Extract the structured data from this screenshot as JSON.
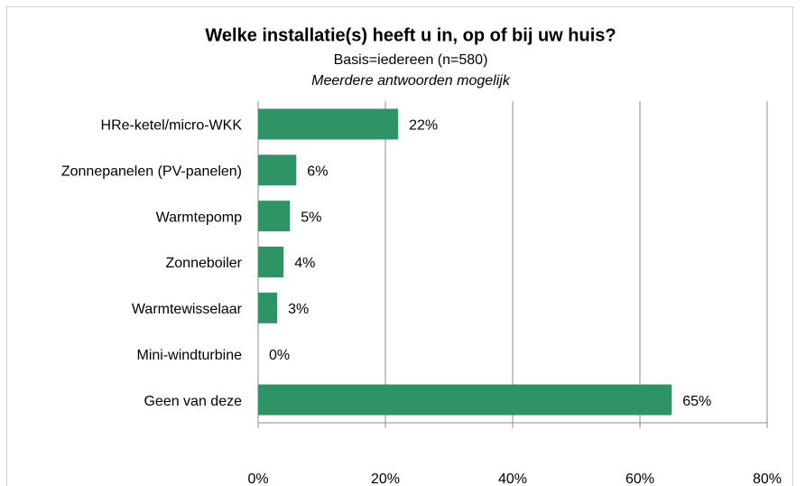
{
  "chart_data": {
    "type": "bar",
    "orientation": "horizontal",
    "title": "Welke installatie(s) heeft u in, op of bij uw huis?",
    "subtitle": "Basis=iedereen (n=580)",
    "note": "Meerdere antwoorden mogelijk",
    "categories": [
      "HRe-ketel/micro-WKK",
      "Zonnepanelen (PV-panelen)",
      "Warmtepomp",
      "Zonneboiler",
      "Warmtewisselaar",
      "Mini-windturbine",
      "Geen van deze"
    ],
    "values": [
      22,
      6,
      5,
      4,
      3,
      0,
      65
    ],
    "value_labels": [
      "22%",
      "6%",
      "5%",
      "4%",
      "3%",
      "0%",
      "65%"
    ],
    "color": "#2e9466",
    "xlim": [
      0,
      80
    ],
    "xticks": [
      {
        "value": 0,
        "label": "0%"
      },
      {
        "value": 20,
        "label": "20%"
      },
      {
        "value": 40,
        "label": "40%"
      },
      {
        "value": 60,
        "label": "60%"
      },
      {
        "value": 80,
        "label": "80%"
      }
    ],
    "grid": true
  }
}
